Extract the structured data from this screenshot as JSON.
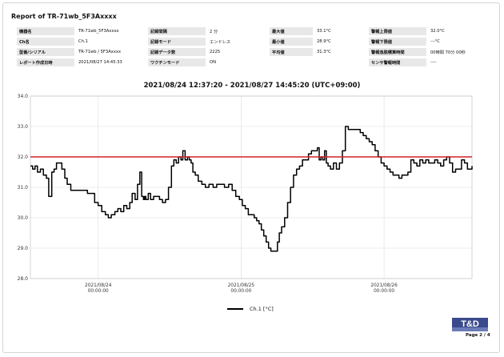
{
  "report_title": "Report of TR-71wb_5F3Axxxx",
  "info_rows": [
    [
      {
        "label": "機器名",
        "value": "TR-71wb_5F3Axxxx"
      },
      {
        "label": "記録間隔",
        "value": "2 分"
      },
      {
        "label": "最大値",
        "value": "33.1°C"
      },
      {
        "label": "警報上限値",
        "value": "32.0°C"
      }
    ],
    [
      {
        "label": "Ch名",
        "value": "Ch.1"
      },
      {
        "label": "記録モード",
        "value": "エンドレス"
      },
      {
        "label": "最小値",
        "value": "28.9°C"
      },
      {
        "label": "警報下限値",
        "value": "---°C"
      }
    ],
    [
      {
        "label": "型番/シリアル",
        "value": "TR-71wb / 5F3Axxxx"
      },
      {
        "label": "記録データ数",
        "value": "2225"
      },
      {
        "label": "平均値",
        "value": "31.3°C"
      },
      {
        "label": "警報逸脱積算時間",
        "value": "00時間 70分 00秒"
      }
    ],
    [
      {
        "label": "レポート作成日時",
        "value": "2021/08/27 14:45:33"
      },
      {
        "label": "ワクチンモード",
        "value": "ON"
      },
      {
        "label": "",
        "value": ""
      },
      {
        "label": "センサ警報時間",
        "value": "----"
      }
    ]
  ],
  "chart_title": "2021/08/24 12:37:20 - 2021/08/27 14:45:20 (UTC+09:00)",
  "legend_label": "Ch.1 [°C]",
  "page_number": "Page 2 / 4",
  "logo_text": "T&D",
  "colors": {
    "line": "#000000",
    "threshold": "#d0202a",
    "grid": "#dddddd",
    "logo_blue": "#3b4a8c"
  },
  "chart_data": {
    "type": "line",
    "title": "2021/08/24 12:37:20 - 2021/08/27 14:45:20 (UTC+09:00)",
    "xlabel": "",
    "ylabel": "",
    "ylim": [
      28.0,
      34.0
    ],
    "y_ticks": [
      "28.0",
      "29.0",
      "30.0",
      "31.0",
      "32.0",
      "33.0",
      "34.0"
    ],
    "x_ticks": [
      {
        "date": "2021/08/24",
        "time": "00:00:00",
        "t": 24
      },
      {
        "date": "2021/08/25",
        "time": "00:00:00",
        "t": 48
      },
      {
        "date": "2021/08/26",
        "time": "00:00:00",
        "t": 72
      }
    ],
    "xlim": [
      12.62,
      86.76
    ],
    "grid": true,
    "legend": "bottom",
    "threshold": {
      "value": 32.0,
      "label": "警報上限値"
    },
    "series": [
      {
        "name": "Ch.1 [°C]",
        "x": [
          12.62,
          13.0,
          13.4,
          13.8,
          14.3,
          14.8,
          15.3,
          15.7,
          16.2,
          16.6,
          17.0,
          17.5,
          17.9,
          18.4,
          18.8,
          19.4,
          19.9,
          20.5,
          21.0,
          21.6,
          22.2,
          22.8,
          23.4,
          24.0,
          24.6,
          25.2,
          25.7,
          26.2,
          26.8,
          27.3,
          27.8,
          28.3,
          28.8,
          29.3,
          29.7,
          30.2,
          30.6,
          31.0,
          31.3,
          31.6,
          31.8,
          32.0,
          32.4,
          32.8,
          33.3,
          33.8,
          34.3,
          34.8,
          35.3,
          35.8,
          36.3,
          36.7,
          37.1,
          37.5,
          37.9,
          38.2,
          38.6,
          39.0,
          39.3,
          39.6,
          39.9,
          40.3,
          40.8,
          41.4,
          42.0,
          42.6,
          43.3,
          43.9,
          44.6,
          45.2,
          45.9,
          46.5,
          47.1,
          47.7,
          48.2,
          48.7,
          49.2,
          49.7,
          50.2,
          50.6,
          51.0,
          51.4,
          51.8,
          52.2,
          52.6,
          53.0,
          53.3,
          53.7,
          54.1,
          54.4,
          54.8,
          55.3,
          55.8,
          56.3,
          56.8,
          57.3,
          57.8,
          58.3,
          58.8,
          59.3,
          59.8,
          60.3,
          60.8,
          61.1,
          61.4,
          61.7,
          62.0,
          62.3,
          62.6,
          63.0,
          63.5,
          64.0,
          64.5,
          65.0,
          65.5,
          66.0,
          66.5,
          67.0,
          67.5,
          68.0,
          68.5,
          69.0,
          69.5,
          70.0,
          70.5,
          71.0,
          71.5,
          72.0,
          72.5,
          73.0,
          73.5,
          74.0,
          74.5,
          75.0,
          75.5,
          76.0,
          76.5,
          77.0,
          77.5,
          78.0,
          78.5,
          79.0,
          79.5,
          80.0,
          80.5,
          81.0,
          81.5,
          82.0,
          82.5,
          83.0,
          83.5,
          84.0,
          84.5,
          85.0,
          85.5,
          86.0,
          86.76
        ],
        "values": [
          31.7,
          31.6,
          31.7,
          31.5,
          31.6,
          31.4,
          31.3,
          30.7,
          31.5,
          31.6,
          31.8,
          31.8,
          31.6,
          31.3,
          31.1,
          30.9,
          30.9,
          30.9,
          30.9,
          30.9,
          30.8,
          30.8,
          30.5,
          30.4,
          30.2,
          30.1,
          30.0,
          30.1,
          30.2,
          30.3,
          30.2,
          30.4,
          30.3,
          30.5,
          30.8,
          30.6,
          31.1,
          31.5,
          30.7,
          30.6,
          30.7,
          30.6,
          30.8,
          30.6,
          30.7,
          30.7,
          30.6,
          30.5,
          30.6,
          31.0,
          31.7,
          31.9,
          31.8,
          32.0,
          31.9,
          32.2,
          31.9,
          32.0,
          31.9,
          31.8,
          31.5,
          31.4,
          31.2,
          31.1,
          31.0,
          31.1,
          31.0,
          31.1,
          31.1,
          31.0,
          31.1,
          30.9,
          30.7,
          30.6,
          30.4,
          30.3,
          30.1,
          30.1,
          30.0,
          29.9,
          29.8,
          29.6,
          29.4,
          29.2,
          29.0,
          28.9,
          28.9,
          28.9,
          29.2,
          29.5,
          29.7,
          30.0,
          30.5,
          31.0,
          31.4,
          31.6,
          31.7,
          31.9,
          31.9,
          32.1,
          32.2,
          32.2,
          32.3,
          31.9,
          32.0,
          31.9,
          32.2,
          31.8,
          31.7,
          31.6,
          31.8,
          31.6,
          31.8,
          32.2,
          33.0,
          32.9,
          32.9,
          32.9,
          32.9,
          32.8,
          32.7,
          32.6,
          32.5,
          32.4,
          32.2,
          32.0,
          31.8,
          31.7,
          31.6,
          31.5,
          31.4,
          31.4,
          31.3,
          31.4,
          31.4,
          31.5,
          31.9,
          31.8,
          31.7,
          31.9,
          31.8,
          31.9,
          31.8,
          31.8,
          31.9,
          31.8,
          31.7,
          31.9,
          32.0,
          31.8,
          31.5,
          31.6,
          31.6,
          31.9,
          31.8,
          31.6,
          31.7
        ]
      }
    ]
  }
}
